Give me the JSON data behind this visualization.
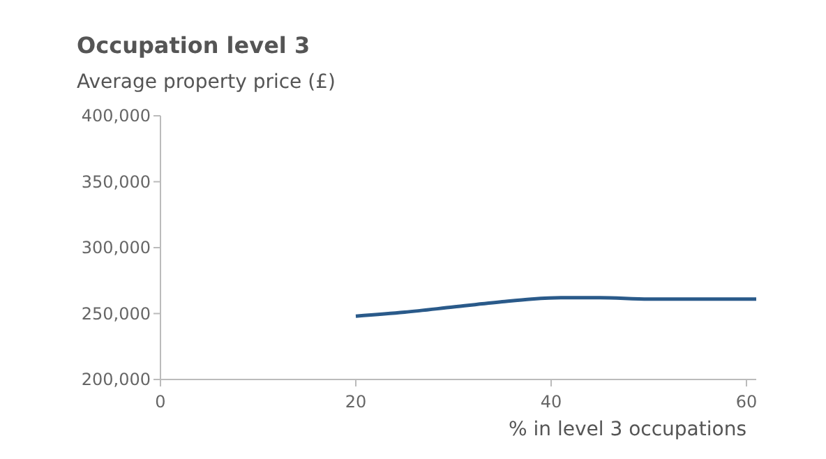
{
  "chart_data": {
    "type": "line",
    "title": "Occupation level 3",
    "ylabel": "Average property price (£)",
    "xlabel": "% in level 3 occupations",
    "x": [
      20,
      25,
      30,
      35,
      38,
      41,
      45,
      50,
      55,
      61
    ],
    "series": [
      {
        "color": "#2a5a8a",
        "values": [
          248000,
          251000,
          255000,
          259000,
          261000,
          262000,
          262000,
          261000,
          261000,
          261000
        ]
      }
    ],
    "xlim": [
      0,
      61
    ],
    "xticks": [
      0,
      20,
      40,
      60
    ],
    "ylim": [
      200000,
      400000
    ],
    "yticks": [
      {
        "value": 200000,
        "label": "200,000"
      },
      {
        "value": 250000,
        "label": "250,000"
      },
      {
        "value": 300000,
        "label": "300,000"
      },
      {
        "value": 350000,
        "label": "350,000"
      },
      {
        "value": 400000,
        "label": "400,000"
      }
    ],
    "grid": false,
    "marker": "none",
    "line_style": "solid"
  }
}
